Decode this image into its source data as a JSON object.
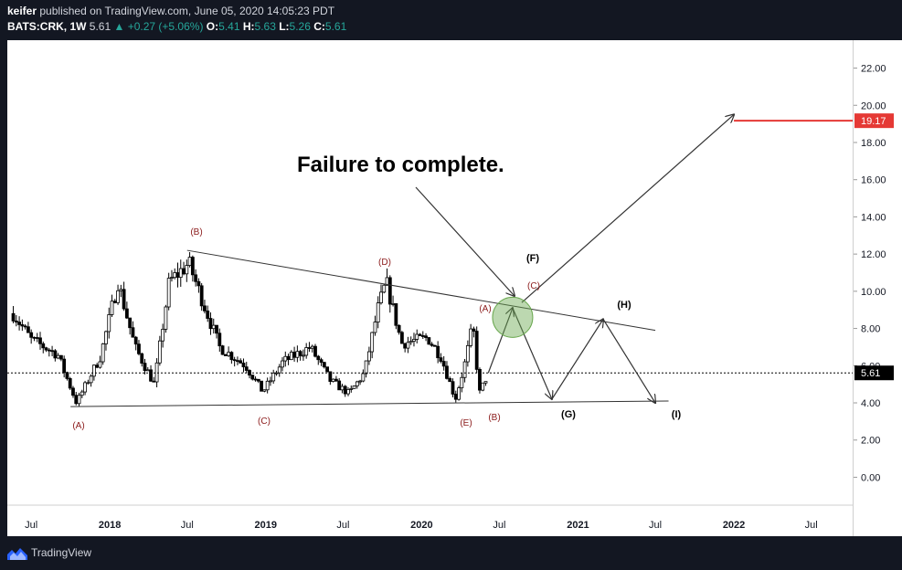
{
  "header": {
    "author": "keifer",
    "published_text": "published on TradingView.com, June 05, 2020 14:05:23 PDT",
    "symbol": "BATS:CRK, 1W",
    "last": "5.61",
    "change": "+0.27 (+5.06%)",
    "o_label": "O:",
    "o_value": "5.41",
    "h_label": "H:",
    "h_value": "5.63",
    "l_label": "L:",
    "l_value": "5.26",
    "c_label": "C:",
    "c_value": "5.61"
  },
  "annotation": {
    "title": "Failure to complete."
  },
  "wave_labels": {
    "A1": "(A)",
    "B1": "(B)",
    "C1": "(C)",
    "D1": "(D)",
    "E1": "(E)",
    "A2": "(A)",
    "B2": "(B)",
    "C2": "(C)",
    "F": "(F)",
    "G": "(G)",
    "H": "(H)",
    "I": "(I)"
  },
  "price_tags": {
    "target": "19.17",
    "last": "5.61"
  },
  "footer": {
    "brand": "TradingView"
  },
  "colors": {
    "background": "#131722",
    "up": "#26a69a",
    "target_line": "#e53935",
    "wave_label": "#8b1a1a",
    "circle": "#6aa84f"
  },
  "chart_data": {
    "type": "candlestick",
    "interval": "1W",
    "y_ticks": [
      "22.00",
      "20.00",
      "18.00",
      "16.00",
      "14.00",
      "12.00",
      "10.00",
      "8.00",
      "6.00",
      "4.00",
      "2.00",
      "0.00"
    ],
    "ylim": [
      -1.5,
      23.5
    ],
    "x_ticks": [
      "Jul",
      "2018",
      "Jul",
      "2019",
      "Jul",
      "2020",
      "Jul",
      "2021",
      "Jul",
      "2022",
      "Jul"
    ],
    "xlim": [
      "2017-05-06",
      "2022-10-06"
    ],
    "series": [
      {
        "name": "CRK",
        "approx_path": [
          [
            "2017-05-20",
            8.8
          ],
          [
            "2017-07-01",
            7.4
          ],
          [
            "2017-09-01",
            6.6
          ],
          [
            "2017-10-15",
            4.0
          ],
          [
            "2017-12-10",
            6.5
          ],
          [
            "2018-01-20",
            10.5
          ],
          [
            "2018-03-01",
            7.0
          ],
          [
            "2018-04-15",
            5.0
          ],
          [
            "2018-05-20",
            10.5
          ],
          [
            "2018-07-05",
            11.5
          ],
          [
            "2018-09-15",
            7.0
          ],
          [
            "2018-11-15",
            6.0
          ],
          [
            "2018-12-25",
            4.6
          ],
          [
            "2019-02-10",
            6.2
          ],
          [
            "2019-04-15",
            7.0
          ],
          [
            "2019-06-01",
            5.2
          ],
          [
            "2019-07-15",
            4.5
          ],
          [
            "2019-08-20",
            5.6
          ],
          [
            "2019-09-20",
            9.0
          ],
          [
            "2019-10-10",
            10.5
          ],
          [
            "2019-11-15",
            7.2
          ],
          [
            "2020-01-15",
            7.5
          ],
          [
            "2020-02-15",
            6.5
          ],
          [
            "2020-03-20",
            4.2
          ],
          [
            "2020-04-10",
            6.0
          ],
          [
            "2020-04-30",
            8.2
          ],
          [
            "2020-05-15",
            4.5
          ],
          [
            "2020-06-05",
            5.61
          ]
        ]
      }
    ],
    "triangle_upper_line": [
      [
        "2018-07-01",
        12.2
      ],
      [
        "2021-07-01",
        7.9
      ]
    ],
    "triangle_lower_line": [
      [
        "2017-10-01",
        3.8
      ],
      [
        "2021-08-01",
        4.1
      ]
    ],
    "projection_path": [
      [
        "2020-06-05",
        5.61
      ],
      [
        "2020-08-01",
        9.1
      ],
      [
        "2020-11-01",
        4.2
      ],
      [
        "2021-03-01",
        8.5
      ],
      [
        "2021-07-01",
        4.0
      ]
    ],
    "arrow_to_target": [
      [
        "2020-08-01",
        9.1
      ],
      [
        "2022-01-01",
        19.5
      ]
    ],
    "target_price": 19.17,
    "last_price": 5.61
  }
}
